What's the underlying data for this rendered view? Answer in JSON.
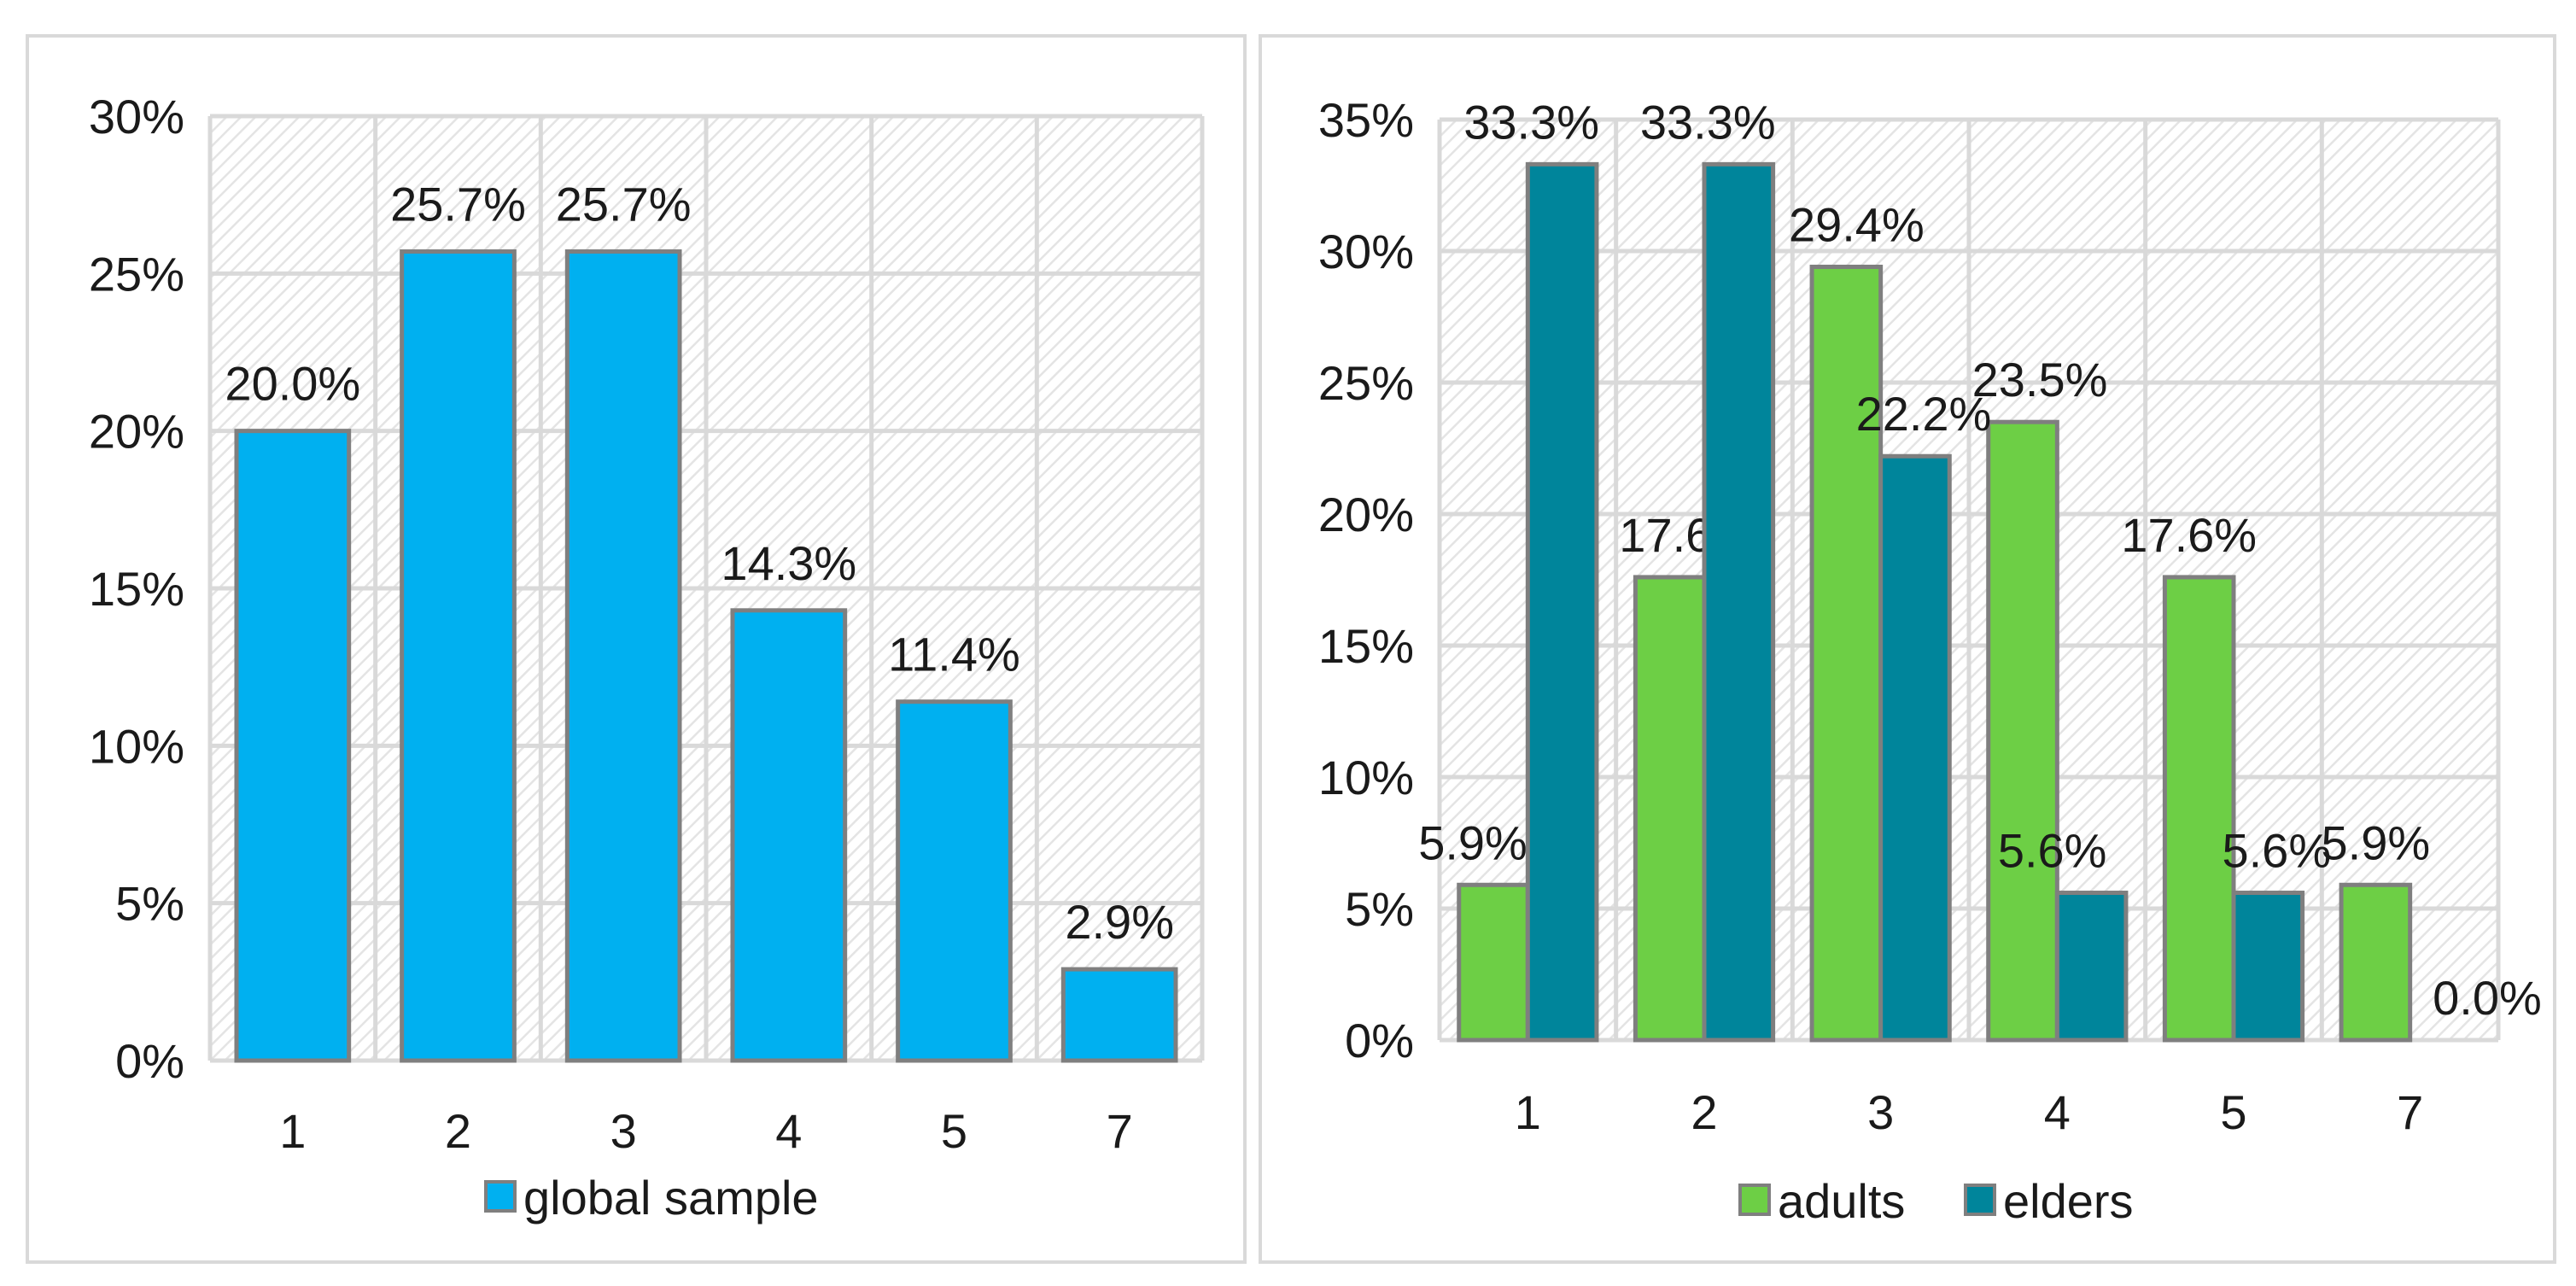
{
  "chart_data": [
    {
      "type": "bar",
      "title": "",
      "xlabel": "",
      "ylabel": "",
      "categories": [
        "1",
        "2",
        "3",
        "4",
        "5",
        "7"
      ],
      "series": [
        {
          "name": "global sample",
          "values": [
            20.0,
            25.7,
            25.7,
            14.3,
            11.4,
            2.9
          ],
          "labels": [
            "20.0%",
            "25.7%",
            "25.7%",
            "14.3%",
            "11.4%",
            "2.9%"
          ],
          "color": "#00b0f0"
        }
      ],
      "ylim": [
        0,
        30
      ],
      "yticks": [
        "0%",
        "5%",
        "10%",
        "15%",
        "20%",
        "25%",
        "30%"
      ],
      "grid": true,
      "legend": "bottom"
    },
    {
      "type": "bar",
      "title": "",
      "xlabel": "",
      "ylabel": "",
      "categories": [
        "1",
        "2",
        "3",
        "4",
        "5",
        "7"
      ],
      "series": [
        {
          "name": "adults",
          "values": [
            5.9,
            17.6,
            29.4,
            23.5,
            17.6,
            5.9
          ],
          "labels": [
            "5.9%",
            "17.6%",
            "29.4%",
            "23.5%",
            "17.6%",
            "5.9%"
          ],
          "color": "#6dcf45"
        },
        {
          "name": "elders",
          "values": [
            33.3,
            33.3,
            22.2,
            5.6,
            5.6,
            0.0
          ],
          "labels": [
            "33.3%",
            "33.3%",
            "22.2%",
            "5.6%",
            "5.6%",
            "0.0%"
          ],
          "color": "#00859b"
        }
      ],
      "ylim": [
        0,
        35
      ],
      "yticks": [
        "0%",
        "5%",
        "10%",
        "15%",
        "20%",
        "25%",
        "30%",
        "35%"
      ],
      "grid": true,
      "legend": "bottom"
    }
  ],
  "colors": {
    "border": "#7f7f7f",
    "grid": "#d9d9d9",
    "hatch": "#e4e4e4"
  }
}
